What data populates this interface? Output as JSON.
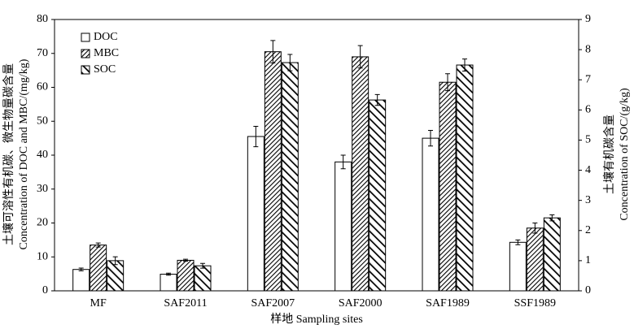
{
  "chart_data": {
    "type": "bar",
    "x_label": "样地 Sampling sites",
    "y_label": [
      "土壤可溶性有机碳、微生物量碳含量",
      "Concentration of DOC and MBC/(mg/kg)"
    ],
    "y2_label": [
      "土壤有机碳含量",
      "Concentration of SOC/(g/kg)"
    ],
    "categories": [
      "MF",
      "SAF2011",
      "SAF2007",
      "SAF2000",
      "SAF1989",
      "SSF1989"
    ],
    "series": [
      {
        "name": "DOC",
        "color": "#000000",
        "hatch": "none",
        "values": [
          6.3,
          4.9,
          45.5,
          38,
          45,
          14.3
        ],
        "errors": [
          0.4,
          0.3,
          3,
          2,
          2.3,
          0.7
        ]
      },
      {
        "name": "MBC",
        "color": "#000000",
        "hatch": "dense",
        "values": [
          13.5,
          9,
          70.5,
          69,
          61.5,
          18.5
        ],
        "errors": [
          0.6,
          0.3,
          3.3,
          3.3,
          2.5,
          1.5
        ]
      },
      {
        "name": "SOC",
        "color": "#000000",
        "hatch": "stripes",
        "axis": "y2",
        "values": [
          1.0,
          0.83,
          7.57,
          6.33,
          7.49,
          2.42
        ],
        "errors": [
          0.13,
          0.08,
          0.27,
          0.18,
          0.2,
          0.1
        ]
      }
    ],
    "ylim": [
      0,
      80
    ],
    "yticks": [
      0,
      10,
      20,
      30,
      40,
      50,
      60,
      70,
      80
    ],
    "y2lim": [
      0,
      9
    ],
    "y2ticks": [
      0,
      1,
      2,
      3,
      4,
      5,
      6,
      7,
      8,
      9
    ],
    "legend": "upper-left",
    "grid": false
  }
}
